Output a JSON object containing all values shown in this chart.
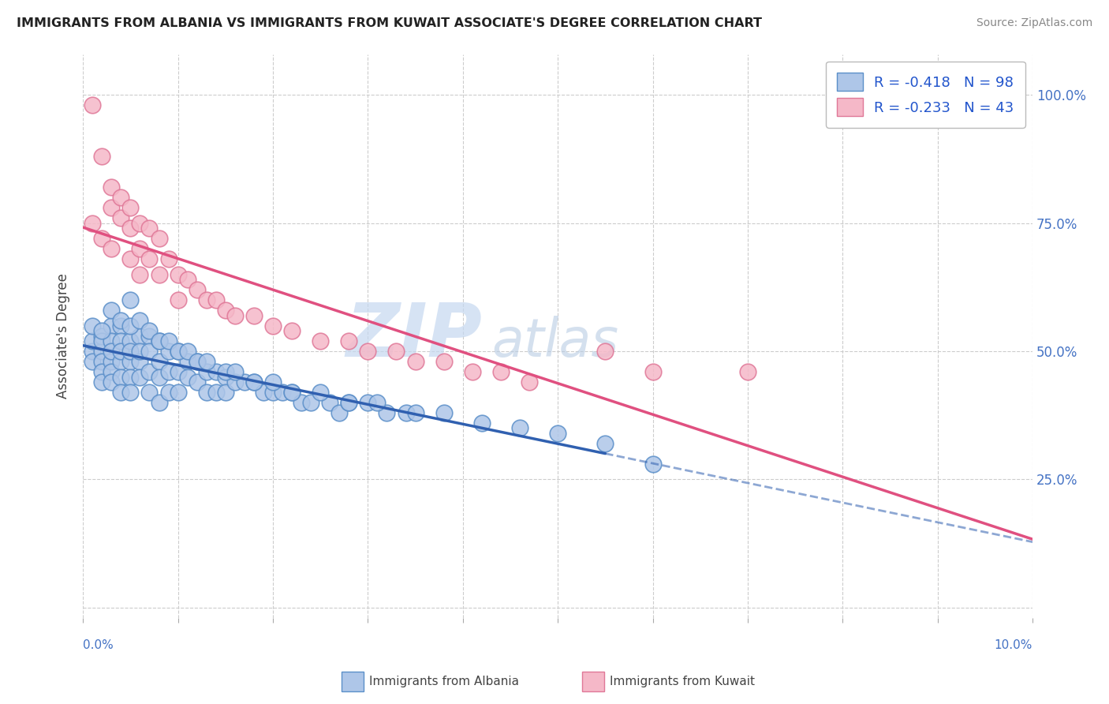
{
  "title": "IMMIGRANTS FROM ALBANIA VS IMMIGRANTS FROM KUWAIT ASSOCIATE'S DEGREE CORRELATION CHART",
  "source": "Source: ZipAtlas.com",
  "ylabel": "Associate's Degree",
  "x_range": [
    0.0,
    0.1
  ],
  "y_range": [
    -0.02,
    1.08
  ],
  "watermark_zip": "ZIP",
  "watermark_atlas": "atlas",
  "legend_r_albania": "-0.418",
  "legend_n_albania": "98",
  "legend_r_kuwait": "-0.233",
  "legend_n_kuwait": "43",
  "color_albania_fill": "#aec6e8",
  "color_albania_edge": "#5b8fc9",
  "color_kuwait_fill": "#f5b8c8",
  "color_kuwait_edge": "#e07898",
  "color_albania_line": "#3060b0",
  "color_kuwait_line": "#e05080",
  "background_color": "#ffffff",
  "grid_color": "#cccccc",
  "albania_x": [
    0.001,
    0.001,
    0.001,
    0.001,
    0.002,
    0.002,
    0.002,
    0.002,
    0.002,
    0.002,
    0.003,
    0.003,
    0.003,
    0.003,
    0.003,
    0.003,
    0.004,
    0.004,
    0.004,
    0.004,
    0.004,
    0.004,
    0.005,
    0.005,
    0.005,
    0.005,
    0.005,
    0.006,
    0.006,
    0.006,
    0.006,
    0.007,
    0.007,
    0.007,
    0.007,
    0.008,
    0.008,
    0.008,
    0.008,
    0.009,
    0.009,
    0.009,
    0.01,
    0.01,
    0.01,
    0.011,
    0.011,
    0.012,
    0.012,
    0.013,
    0.013,
    0.014,
    0.014,
    0.015,
    0.015,
    0.016,
    0.017,
    0.018,
    0.019,
    0.02,
    0.021,
    0.022,
    0.023,
    0.024,
    0.026,
    0.027,
    0.028,
    0.03,
    0.032,
    0.034,
    0.002,
    0.003,
    0.004,
    0.005,
    0.005,
    0.006,
    0.007,
    0.008,
    0.009,
    0.01,
    0.011,
    0.012,
    0.013,
    0.015,
    0.016,
    0.018,
    0.02,
    0.022,
    0.025,
    0.028,
    0.031,
    0.035,
    0.038,
    0.042,
    0.046,
    0.05,
    0.055,
    0.06
  ],
  "albania_y": [
    0.5,
    0.48,
    0.52,
    0.55,
    0.5,
    0.53,
    0.48,
    0.52,
    0.46,
    0.44,
    0.55,
    0.52,
    0.48,
    0.46,
    0.5,
    0.44,
    0.55,
    0.52,
    0.48,
    0.45,
    0.5,
    0.42,
    0.52,
    0.48,
    0.45,
    0.42,
    0.5,
    0.53,
    0.48,
    0.45,
    0.5,
    0.53,
    0.5,
    0.46,
    0.42,
    0.52,
    0.48,
    0.45,
    0.4,
    0.5,
    0.46,
    0.42,
    0.5,
    0.46,
    0.42,
    0.48,
    0.45,
    0.48,
    0.44,
    0.46,
    0.42,
    0.46,
    0.42,
    0.45,
    0.42,
    0.44,
    0.44,
    0.44,
    0.42,
    0.42,
    0.42,
    0.42,
    0.4,
    0.4,
    0.4,
    0.38,
    0.4,
    0.4,
    0.38,
    0.38,
    0.54,
    0.58,
    0.56,
    0.6,
    0.55,
    0.56,
    0.54,
    0.52,
    0.52,
    0.5,
    0.5,
    0.48,
    0.48,
    0.46,
    0.46,
    0.44,
    0.44,
    0.42,
    0.42,
    0.4,
    0.4,
    0.38,
    0.38,
    0.36,
    0.35,
    0.34,
    0.32,
    0.28
  ],
  "kuwait_x": [
    0.001,
    0.001,
    0.002,
    0.002,
    0.003,
    0.003,
    0.003,
    0.004,
    0.004,
    0.005,
    0.005,
    0.005,
    0.006,
    0.006,
    0.006,
    0.007,
    0.007,
    0.008,
    0.008,
    0.009,
    0.01,
    0.01,
    0.011,
    0.012,
    0.013,
    0.014,
    0.015,
    0.016,
    0.018,
    0.02,
    0.022,
    0.025,
    0.028,
    0.03,
    0.033,
    0.035,
    0.038,
    0.041,
    0.044,
    0.047,
    0.055,
    0.06,
    0.07
  ],
  "kuwait_y": [
    0.98,
    0.75,
    0.88,
    0.72,
    0.82,
    0.78,
    0.7,
    0.8,
    0.76,
    0.78,
    0.74,
    0.68,
    0.75,
    0.7,
    0.65,
    0.74,
    0.68,
    0.72,
    0.65,
    0.68,
    0.65,
    0.6,
    0.64,
    0.62,
    0.6,
    0.6,
    0.58,
    0.57,
    0.57,
    0.55,
    0.54,
    0.52,
    0.52,
    0.5,
    0.5,
    0.48,
    0.48,
    0.46,
    0.46,
    0.44,
    0.5,
    0.46,
    0.46
  ],
  "ytick_positions": [
    0.0,
    0.25,
    0.5,
    0.75,
    1.0
  ],
  "ytick_labels": [
    "",
    "25.0%",
    "50.0%",
    "75.0%",
    "100.0%"
  ]
}
